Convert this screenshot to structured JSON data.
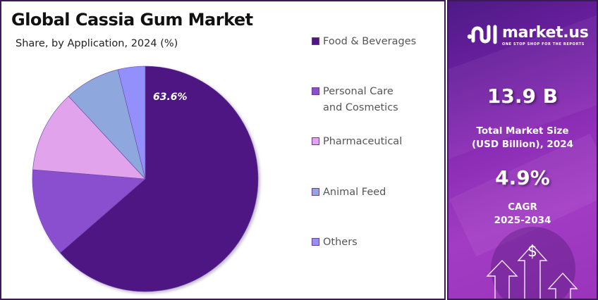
{
  "header": {
    "title": "Global Cassia Gum Market",
    "subtitle": "Share, by Application, 2024 (%)"
  },
  "legend": {
    "items": [
      {
        "label_line1": "Food & Beverages",
        "label_line2": "",
        "color": "#4e1782"
      },
      {
        "label_line1": "Personal Care",
        "label_line2": "and Cosmetics",
        "color": "#8a4fcf"
      },
      {
        "label_line1": "Pharmaceutical",
        "label_line2": "",
        "color": "#e0a3ec"
      },
      {
        "label_line1": "Animal Feed",
        "label_line2": "",
        "color": "#8ea7dc"
      },
      {
        "label_line1": "Others",
        "label_line2": "",
        "color": "#9490fb"
      }
    ]
  },
  "pie": {
    "highlight_label": "63.6%"
  },
  "brand": {
    "name": "market.us",
    "tagline": "ONE STOP SHOP FOR THE REPORTS"
  },
  "stats": {
    "market_size_value": "13.9 B",
    "market_size_label_line1": "Total Market Size",
    "market_size_label_line2": "(USD Billion), 2024",
    "cagr_value": "4.9%",
    "cagr_label_line1": "CAGR",
    "cagr_label_line2": "2025-2034"
  },
  "icons": {
    "dollar": "$"
  },
  "chart_data": {
    "type": "pie",
    "title": "Global Cassia Gum Market",
    "subtitle": "Share, by Application, 2024 (%)",
    "categories": [
      "Food & Beverages",
      "Personal Care and Cosmetics",
      "Pharmaceutical",
      "Animal Feed",
      "Others"
    ],
    "values": [
      63.6,
      12.7,
      11.8,
      8.0,
      3.9
    ],
    "colors": [
      "#4e1782",
      "#8a4fcf",
      "#e0a3ec",
      "#8ea7dc",
      "#9490fb"
    ],
    "data_labels": {
      "Food & Beverages": "63.6%"
    },
    "start_angle_deg": 0,
    "direction": "clockwise",
    "legend_position": "right"
  }
}
